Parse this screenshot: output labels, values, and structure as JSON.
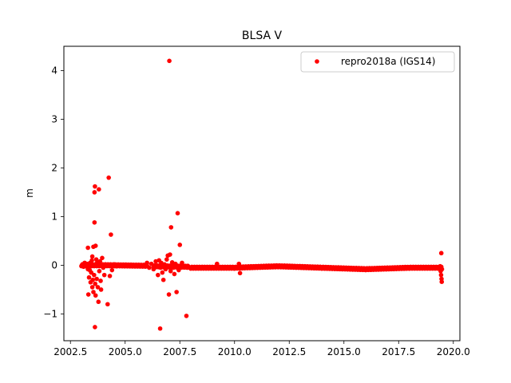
{
  "chart_data": {
    "type": "scatter",
    "title": "BLSA V",
    "xlabel": "",
    "ylabel": "m",
    "xlim": [
      2002.2,
      2020.3
    ],
    "ylim": [
      -1.55,
      4.5
    ],
    "xticks": [
      2002.5,
      2005.0,
      2007.5,
      2010.0,
      2012.5,
      2015.0,
      2017.5,
      2020.0
    ],
    "xtick_labels": [
      "2002.5",
      "2005.0",
      "2007.5",
      "2010.0",
      "2012.5",
      "2015.0",
      "2017.5",
      "2020.0"
    ],
    "yticks": [
      -1,
      0,
      1,
      2,
      3,
      4
    ],
    "ytick_labels": [
      "−1",
      "0",
      "1",
      "2",
      "3",
      "4"
    ],
    "grid": false,
    "legend_position": "top-right",
    "colors": {
      "series": "#ff0000",
      "axes": "#000000",
      "frame": "#000000"
    },
    "series": [
      {
        "name": "repro2018a (IGS14)",
        "marker": "dot",
        "baseline": {
          "segments": [
            {
              "x_start": 2003.0,
              "x_end": 2004.4,
              "y_start": 0.0,
              "y_end": 0.0
            },
            {
              "x_start": 2004.4,
              "x_end": 2006.0,
              "y_start": 0.0,
              "y_end": -0.01
            },
            {
              "x_start": 2006.3,
              "x_end": 2007.9,
              "y_start": -0.02,
              "y_end": -0.03
            },
            {
              "x_start": 2008.0,
              "x_end": 2010.0,
              "y_start": -0.05,
              "y_end": -0.05
            },
            {
              "x_start": 2010.0,
              "x_end": 2012.0,
              "y_start": -0.05,
              "y_end": -0.02
            },
            {
              "x_start": 2012.0,
              "x_end": 2014.0,
              "y_start": -0.02,
              "y_end": -0.05
            },
            {
              "x_start": 2014.0,
              "x_end": 2016.0,
              "y_start": -0.05,
              "y_end": -0.08
            },
            {
              "x_start": 2016.0,
              "x_end": 2018.0,
              "y_start": -0.08,
              "y_end": -0.05
            },
            {
              "x_start": 2018.0,
              "x_end": 2019.45,
              "y_start": -0.05,
              "y_end": -0.05
            }
          ]
        },
        "points": [
          [
            2003.05,
            0.02
          ],
          [
            2003.1,
            -0.03
          ],
          [
            2003.15,
            0.05
          ],
          [
            2003.2,
            -0.02
          ],
          [
            2003.25,
            0.03
          ],
          [
            2003.3,
            -0.08
          ],
          [
            2003.3,
            0.36
          ],
          [
            2003.32,
            -0.6
          ],
          [
            2003.35,
            -0.25
          ],
          [
            2003.38,
            -0.1
          ],
          [
            2003.4,
            0.05
          ],
          [
            2003.42,
            -0.35
          ],
          [
            2003.45,
            -0.15
          ],
          [
            2003.48,
            0.1
          ],
          [
            2003.5,
            -0.45
          ],
          [
            2003.5,
            0.18
          ],
          [
            2003.52,
            -0.3
          ],
          [
            2003.55,
            0.38
          ],
          [
            2003.55,
            -0.55
          ],
          [
            2003.58,
            -0.2
          ],
          [
            2003.6,
            1.5
          ],
          [
            2003.6,
            0.88
          ],
          [
            2003.62,
            1.62
          ],
          [
            2003.62,
            -1.27
          ],
          [
            2003.63,
            -0.38
          ],
          [
            2003.65,
            0.4
          ],
          [
            2003.65,
            -0.62
          ],
          [
            2003.68,
            0.12
          ],
          [
            2003.7,
            -0.28
          ],
          [
            2003.72,
            0.05
          ],
          [
            2003.75,
            -0.45
          ],
          [
            2003.78,
            -0.75
          ],
          [
            2003.8,
            1.56
          ],
          [
            2003.82,
            -0.12
          ],
          [
            2003.85,
            0.08
          ],
          [
            2003.88,
            -0.32
          ],
          [
            2003.9,
            -0.5
          ],
          [
            2003.95,
            0.15
          ],
          [
            2004.0,
            -0.05
          ],
          [
            2004.05,
            -0.2
          ],
          [
            2004.1,
            0.02
          ],
          [
            2004.2,
            -0.8
          ],
          [
            2004.25,
            1.8
          ],
          [
            2004.3,
            -0.22
          ],
          [
            2004.35,
            0.63
          ],
          [
            2004.4,
            -0.1
          ],
          [
            2004.5,
            0.02
          ],
          [
            2004.6,
            -0.02
          ],
          [
            2006.0,
            0.05
          ],
          [
            2006.1,
            -0.05
          ],
          [
            2006.2,
            0.03
          ],
          [
            2006.3,
            -0.08
          ],
          [
            2006.4,
            0.08
          ],
          [
            2006.5,
            -0.2
          ],
          [
            2006.55,
            0.1
          ],
          [
            2006.6,
            -1.3
          ],
          [
            2006.62,
            -0.05
          ],
          [
            2006.65,
            0.05
          ],
          [
            2006.7,
            -0.15
          ],
          [
            2006.75,
            -0.3
          ],
          [
            2006.8,
            0.02
          ],
          [
            2006.85,
            -0.08
          ],
          [
            2006.9,
            0.12
          ],
          [
            2006.95,
            0.2
          ],
          [
            2007.0,
            -0.6
          ],
          [
            2007.02,
            4.2
          ],
          [
            2007.05,
            0.22
          ],
          [
            2007.08,
            -0.12
          ],
          [
            2007.1,
            0.78
          ],
          [
            2007.15,
            0.06
          ],
          [
            2007.2,
            -0.05
          ],
          [
            2007.25,
            -0.18
          ],
          [
            2007.3,
            0.03
          ],
          [
            2007.35,
            -0.55
          ],
          [
            2007.4,
            1.07
          ],
          [
            2007.45,
            -0.1
          ],
          [
            2007.5,
            0.42
          ],
          [
            2007.55,
            -0.02
          ],
          [
            2007.6,
            0.05
          ],
          [
            2007.7,
            -0.03
          ],
          [
            2007.8,
            -1.04
          ],
          [
            2007.85,
            -0.05
          ],
          [
            2009.2,
            0.03
          ],
          [
            2010.2,
            0.03
          ],
          [
            2010.25,
            -0.16
          ],
          [
            2019.4,
            -0.02
          ],
          [
            2019.42,
            -0.12
          ],
          [
            2019.44,
            -0.2
          ],
          [
            2019.45,
            0.25
          ],
          [
            2019.46,
            -0.28
          ],
          [
            2019.47,
            -0.34
          ],
          [
            2019.48,
            -0.08
          ]
        ]
      }
    ]
  }
}
